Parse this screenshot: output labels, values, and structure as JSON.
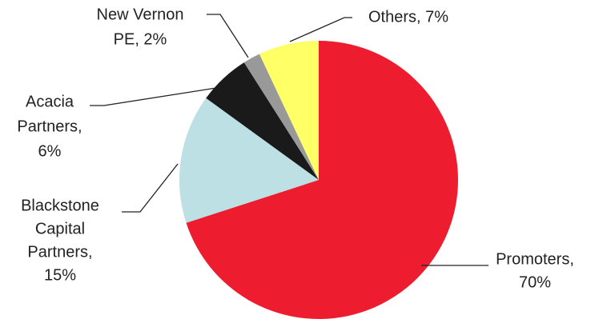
{
  "chart_data": {
    "type": "pie",
    "labels": [
      [
        "Promoters,",
        "70%"
      ],
      [
        "Blackstone",
        "Capital",
        "Partners,",
        "15%"
      ],
      [
        "Acacia",
        "Partners,",
        "6%"
      ],
      [
        "New Vernon",
        "PE, 2%"
      ],
      [
        "Others, 7%"
      ]
    ],
    "values": [
      70,
      15,
      6,
      2,
      7
    ],
    "colors": [
      "#ed1c2e",
      "#bde0e4",
      "#1a1a1a",
      "#999999",
      "#ffff66"
    ]
  }
}
